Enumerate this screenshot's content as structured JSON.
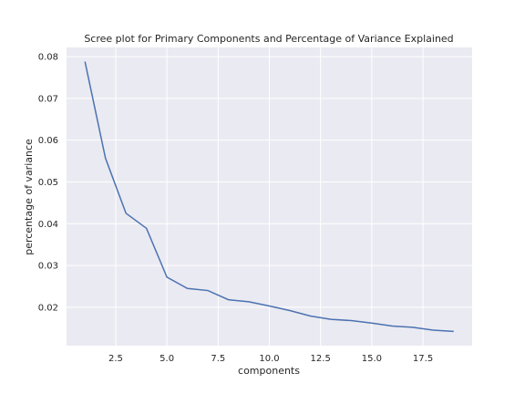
{
  "chart_data": {
    "type": "line",
    "title": "Scree plot for Primary Components and Percentage of Variance Explained",
    "xlabel": "components",
    "ylabel": "percentage of variance",
    "xlim": [
      0.1,
      19.9
    ],
    "ylim": [
      0.0108,
      0.0822
    ],
    "xticks": [
      2.5,
      5.0,
      7.5,
      10.0,
      12.5,
      15.0,
      17.5
    ],
    "xtick_labels": [
      "2.5",
      "5.0",
      "7.5",
      "10.0",
      "12.5",
      "15.0",
      "17.5"
    ],
    "yticks": [
      0.02,
      0.03,
      0.04,
      0.05,
      0.06,
      0.07,
      0.08
    ],
    "ytick_labels": [
      "0.02",
      "0.03",
      "0.04",
      "0.05",
      "0.06",
      "0.07",
      "0.08"
    ],
    "grid": true,
    "colors": {
      "line": "#4c72b0",
      "plot_bg": "#eaeaf2",
      "grid": "#ffffff"
    },
    "series": [
      {
        "x": [
          1,
          2,
          3,
          4,
          5,
          6,
          7,
          8,
          9,
          10,
          11,
          12,
          13,
          14,
          15,
          16,
          17,
          18,
          19
        ],
        "values": [
          0.0788,
          0.0557,
          0.0425,
          0.0389,
          0.0272,
          0.0245,
          0.024,
          0.0218,
          0.0213,
          0.0203,
          0.0192,
          0.0179,
          0.0171,
          0.0168,
          0.0162,
          0.0155,
          0.0152,
          0.0145,
          0.0142
        ]
      }
    ]
  }
}
